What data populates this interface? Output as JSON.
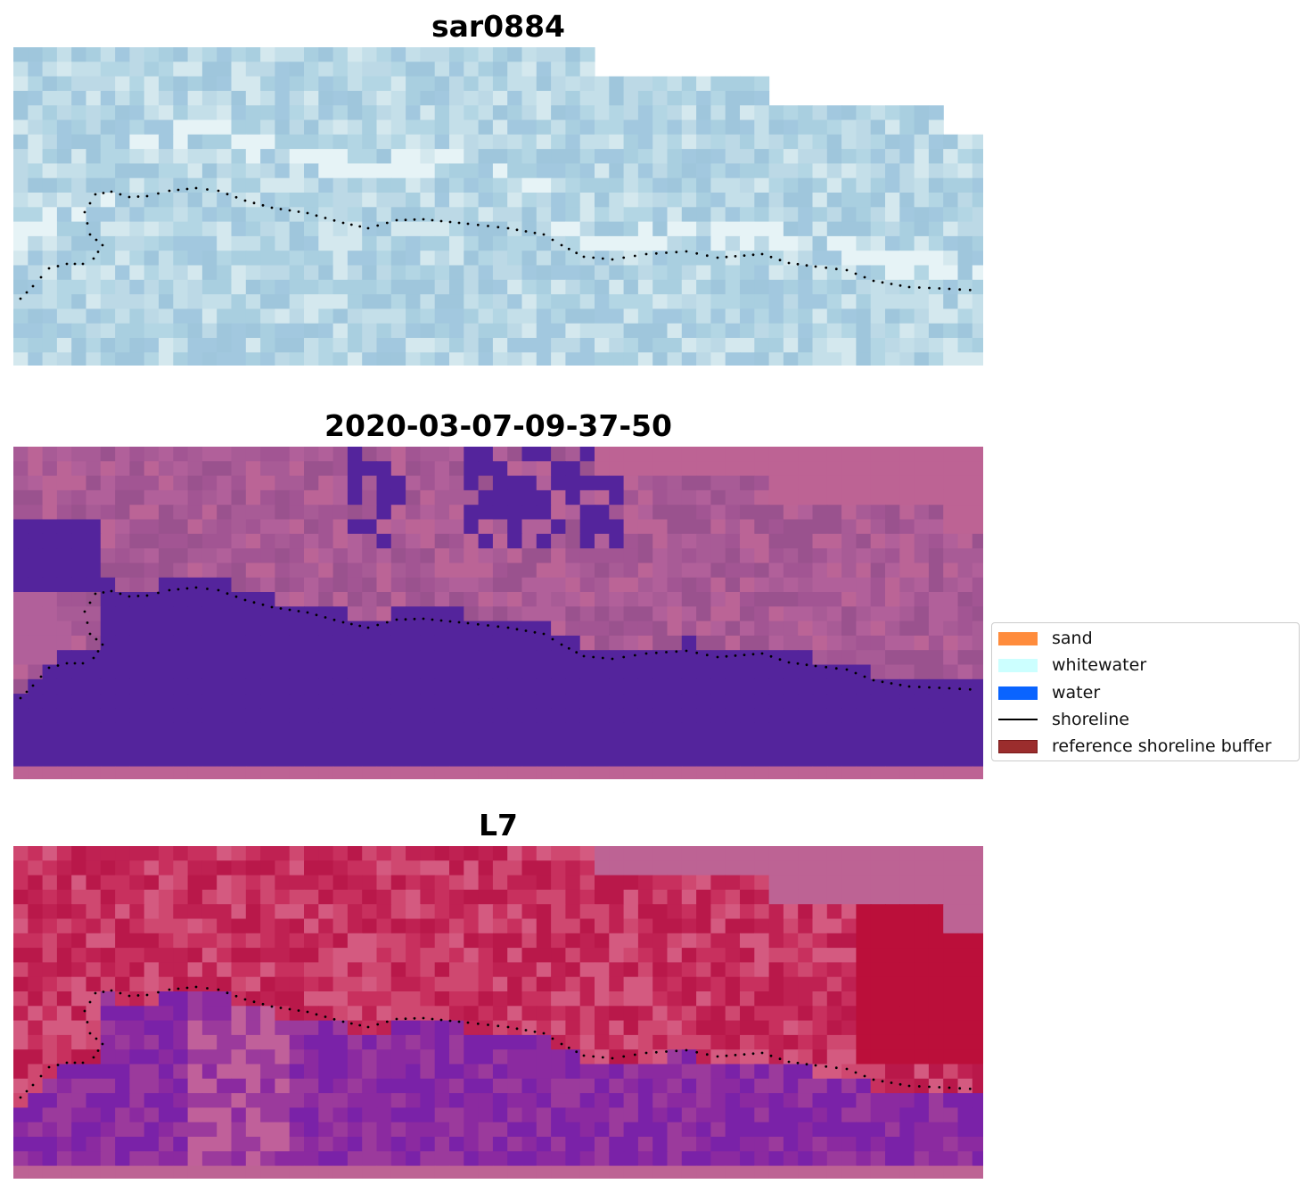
{
  "panels": [
    {
      "title": "sar0884",
      "palette": [
        "#a9cfe0",
        "#b3d6e4",
        "#c4dfe9",
        "#a2c8df",
        "#bcd9e6",
        "#d4e8ee",
        "#9fc6dc"
      ]
    },
    {
      "title": "2020-03-07-09-37-50",
      "palette": [
        "#a25593",
        "#b1609a",
        "#9a528e",
        "#bb6496",
        "#a85b96"
      ]
    },
    {
      "title": "L7",
      "palette": [
        "#c8305e",
        "#cf4870",
        "#bf2152",
        "#d45a80",
        "#b9184a"
      ]
    }
  ],
  "colors": {
    "water_class": "#54249c",
    "nodata": "#bd6394",
    "l7_sand": "#c93a65",
    "l7_water": "#7a22a8",
    "shoreline": "#000000"
  },
  "legend": {
    "items": [
      {
        "label": "sand",
        "color": "#ff8c3c",
        "type": "patch"
      },
      {
        "label": "whitewater",
        "color": "#ccffff",
        "type": "patch"
      },
      {
        "label": "water",
        "color": "#0a64ff",
        "type": "patch"
      },
      {
        "label": "shoreline",
        "color": "#000000",
        "type": "line"
      },
      {
        "label": "reference shoreline buffer",
        "color": "#9b2d2d",
        "type": "patch"
      }
    ]
  }
}
